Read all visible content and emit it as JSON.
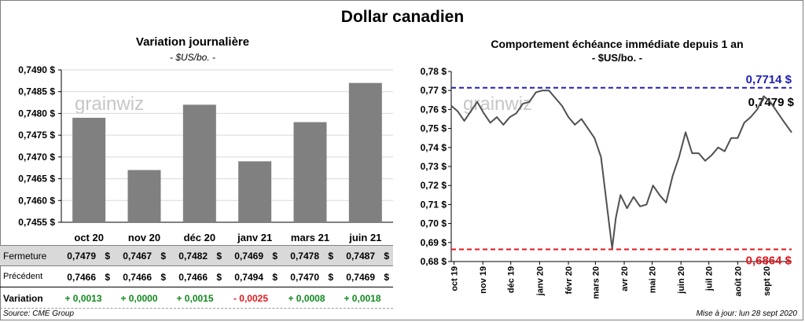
{
  "title": "Dollar canadien",
  "left_chart": {
    "title": "Variation  journalière",
    "units": "- $US/bo. -"
  },
  "right_chart": {
    "title": "Comportement échéance immédiate depuis 1 an",
    "units": "- $US/bo. -",
    "high_label": "0,7714 $",
    "low_label": "0,6864 $",
    "last_label": "0,7479 $"
  },
  "watermark": "grainwiz",
  "colors": {
    "bar": "#808080",
    "line": "#505050",
    "high": "#1f1fb4",
    "low": "#e0161b",
    "positive": "#0f8a1d",
    "negative": "#e0161b"
  },
  "table": {
    "row_labels": {
      "close": "Fermeture",
      "previous": "Précédent",
      "change": "Variation"
    },
    "close": [
      "0,7479",
      "0,7467",
      "0,7482",
      "0,7469",
      "0,7478",
      "0,7487"
    ],
    "previous": [
      "0,7466",
      "0,7466",
      "0,7466",
      "0,7494",
      "0,7470",
      "0,7469"
    ],
    "change": [
      "+ 0,0013",
      "+ 0,0000",
      "+ 0,0015",
      "- 0,0025",
      "+ 0,0008",
      "+ 0,0018"
    ],
    "dollar": "$"
  },
  "source": "Source: CME Group",
  "updated": "Mise à jour: lun 28 sept 2020",
  "chart_data": [
    {
      "type": "bar",
      "categories": [
        "oct 20",
        "nov 20",
        "déc 20",
        "janv 21",
        "mars 21",
        "juin 21"
      ],
      "values": [
        0.7479,
        0.7467,
        0.7482,
        0.7469,
        0.7478,
        0.7487
      ],
      "ylim": [
        0.7455,
        0.749
      ],
      "yticks": [
        "0,7455 $",
        "0,7460 $",
        "0,7465 $",
        "0,7470 $",
        "0,7475 $",
        "0,7480 $",
        "0,7485 $",
        "0,7490 $"
      ],
      "ytick_values": [
        0.7455,
        0.746,
        0.7465,
        0.747,
        0.7475,
        0.748,
        0.7485,
        0.749
      ],
      "grid": true
    },
    {
      "type": "line",
      "ylim": [
        0.68,
        0.78
      ],
      "yticks": [
        "0,68 $",
        "0,69 $",
        "0,70 $",
        "0,71 $",
        "0,72 $",
        "0,73 $",
        "0,74 $",
        "0,75 $",
        "0,76 $",
        "0,77 $",
        "0,78 $"
      ],
      "ytick_values": [
        0.68,
        0.69,
        0.7,
        0.71,
        0.72,
        0.73,
        0.74,
        0.75,
        0.76,
        0.77,
        0.78
      ],
      "xticks": [
        "oct 19",
        "nov 19",
        "déc 19",
        "janv 20",
        "févr 20",
        "mars 20",
        "avr 20",
        "mai 20",
        "juin 20",
        "juil 20",
        "août 20",
        "sept 20"
      ],
      "xtick_values": [
        "2019-10-01",
        "2019-11-01",
        "2019-12-01",
        "2020-01-01",
        "2020-02-01",
        "2020-03-01",
        "2020-04-01",
        "2020-05-01",
        "2020-06-01",
        "2020-07-01",
        "2020-08-01",
        "2020-09-01"
      ],
      "xrange": [
        "2019-09-28",
        "2020-09-28"
      ],
      "grid": false,
      "high": 0.7714,
      "low": 0.6864,
      "last": 0.7479,
      "x": [
        "2019-09-28",
        "2019-10-05",
        "2019-10-12",
        "2019-10-19",
        "2019-10-26",
        "2019-11-02",
        "2019-11-09",
        "2019-11-16",
        "2019-11-23",
        "2019-11-30",
        "2019-12-07",
        "2019-12-14",
        "2019-12-21",
        "2019-12-28",
        "2020-01-04",
        "2020-01-11",
        "2020-01-18",
        "2020-01-25",
        "2020-02-01",
        "2020-02-08",
        "2020-02-15",
        "2020-02-22",
        "2020-02-29",
        "2020-03-07",
        "2020-03-12",
        "2020-03-17",
        "2020-03-19",
        "2020-03-23",
        "2020-03-28",
        "2020-04-04",
        "2020-04-11",
        "2020-04-18",
        "2020-04-25",
        "2020-05-02",
        "2020-05-09",
        "2020-05-16",
        "2020-05-23",
        "2020-05-30",
        "2020-06-06",
        "2020-06-13",
        "2020-06-20",
        "2020-06-27",
        "2020-07-04",
        "2020-07-11",
        "2020-07-18",
        "2020-07-25",
        "2020-08-01",
        "2020-08-08",
        "2020-08-15",
        "2020-08-22",
        "2020-08-29",
        "2020-09-05",
        "2020-09-12",
        "2020-09-19",
        "2020-09-28"
      ],
      "y": [
        0.762,
        0.759,
        0.754,
        0.759,
        0.764,
        0.758,
        0.753,
        0.756,
        0.752,
        0.756,
        0.758,
        0.763,
        0.764,
        0.769,
        0.77,
        0.77,
        0.766,
        0.762,
        0.756,
        0.752,
        0.755,
        0.75,
        0.745,
        0.735,
        0.715,
        0.695,
        0.687,
        0.703,
        0.715,
        0.708,
        0.714,
        0.709,
        0.71,
        0.72,
        0.715,
        0.711,
        0.725,
        0.735,
        0.748,
        0.737,
        0.737,
        0.733,
        0.736,
        0.74,
        0.738,
        0.745,
        0.745,
        0.753,
        0.756,
        0.76,
        0.767,
        0.764,
        0.759,
        0.754,
        0.7479
      ]
    }
  ]
}
